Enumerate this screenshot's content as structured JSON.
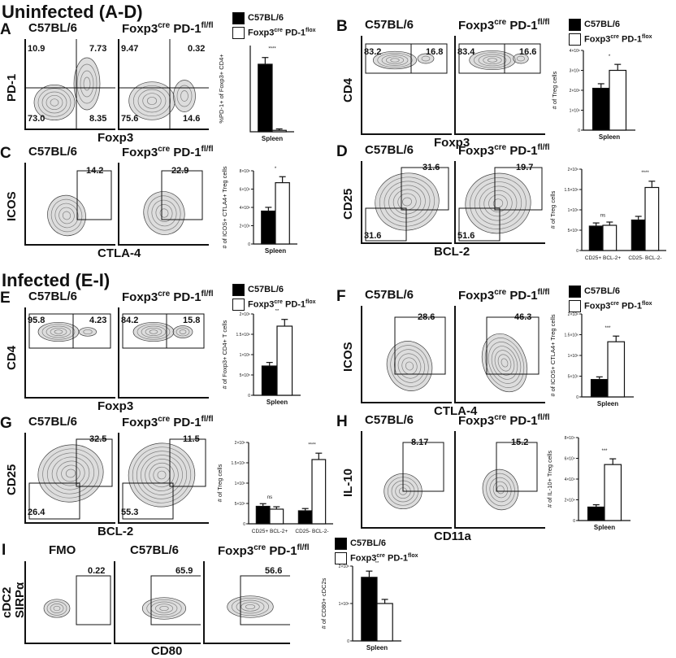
{
  "sections": {
    "uninfected": "Uninfected (A-D)",
    "infected": "Infected (E-I)"
  },
  "strains": {
    "wt": "C57BL/6",
    "ko_main": "Foxp3",
    "ko_sup1": "cre",
    "ko_mid": " PD-1",
    "ko_sup2_fl": "fl/fl",
    "ko_sup2_flox": "flox",
    "fmo": "FMO"
  },
  "colors": {
    "wt_bar": "#000000",
    "ko_bar": "#ffffff",
    "axis": "#111111"
  },
  "panels": {
    "A": {
      "letter": "A",
      "xaxis": "Foxp3",
      "yaxis": "PD-1",
      "wt": {
        "ul": "10.9",
        "ur": "7.73",
        "ll": "73.0",
        "lr": "8.35"
      },
      "ko": {
        "ul": "9.47",
        "ur": "0.32",
        "ll": "75.6",
        "lr": "14.6"
      }
    },
    "B": {
      "letter": "B",
      "xaxis": "Foxp3",
      "yaxis": "CD4",
      "wt": {
        "left": "83.2",
        "right": "16.8"
      },
      "ko": {
        "left": "83.4",
        "right": "16.6"
      }
    },
    "C": {
      "letter": "C",
      "xaxis": "CTLA-4",
      "yaxis": "ICOS",
      "wt": {
        "gate": "14.2"
      },
      "ko": {
        "gate": "22.9"
      }
    },
    "D": {
      "letter": "D",
      "xaxis": "BCL-2",
      "yaxis": "CD25",
      "wt": {
        "top": "31.6",
        "bottom": "31.6"
      },
      "ko": {
        "top": "19.7",
        "bottom": "51.6"
      }
    },
    "E": {
      "letter": "E",
      "xaxis": "Foxp3",
      "yaxis": "CD4",
      "wt": {
        "left": "95.8",
        "right": "4.23"
      },
      "ko": {
        "left": "84.2",
        "right": "15.8"
      }
    },
    "F": {
      "letter": "F",
      "xaxis": "CTLA-4",
      "yaxis": "ICOS",
      "wt": {
        "gate": "28.6"
      },
      "ko": {
        "gate": "46.3"
      }
    },
    "G": {
      "letter": "G",
      "xaxis": "BCL-2",
      "yaxis": "CD25",
      "wt": {
        "top": "32.5",
        "bottom": "26.4"
      },
      "ko": {
        "top": "11.5",
        "bottom": "55.3"
      }
    },
    "H": {
      "letter": "H",
      "xaxis": "CD11a",
      "yaxis": "IL-10",
      "wt": {
        "gate": "8.17"
      },
      "ko": {
        "gate": "15.2"
      }
    },
    "I": {
      "letter": "I",
      "xaxis": "CD80",
      "yaxis_top": "cDC2",
      "yaxis": "SIRPα",
      "fmo": {
        "gate": "0.22"
      },
      "wt": {
        "gate": "65.9"
      },
      "ko": {
        "gate": "56.6"
      }
    }
  },
  "chart_data": [
    {
      "id": "A",
      "type": "bar",
      "ylabel": "%PD-1+ of Foxp3+ CD4+",
      "ylabel_main": "%PD-1",
      "ylabel_tail": " of Foxp3",
      "ylabel_end": " CD4",
      "xlabel": "Spleen",
      "categories": [
        "Spleen"
      ],
      "ylim": [
        0,
        60
      ],
      "yticks": [],
      "sig": [
        "****"
      ],
      "series": [
        {
          "name": "C57BL/6",
          "values": [
            47
          ]
        },
        {
          "name": "Foxp3cre PD-1flox",
          "values": [
            1
          ]
        }
      ]
    },
    {
      "id": "B",
      "type": "bar",
      "ylabel": "# of Treg cells",
      "xlabel": "Spleen",
      "categories": [
        "Spleen"
      ],
      "ylim": [
        0,
        4000000
      ],
      "yticks": [
        "0",
        "1×10⁶",
        "2×10⁶",
        "3×10⁶",
        "4×10⁶"
      ],
      "sig": [
        "*"
      ],
      "series": [
        {
          "name": "C57BL/6",
          "values": [
            2100000
          ]
        },
        {
          "name": "Foxp3cre PD-1flox",
          "values": [
            3000000
          ]
        }
      ]
    },
    {
      "id": "C",
      "type": "bar",
      "ylabel": "# of ICOS+ CTLA4+ Treg cells",
      "ylabel_l1": "# of ICOS",
      "ylabel_l1b": " CTLA4",
      "ylabel_l2": "Treg cells",
      "xlabel": "Spleen",
      "categories": [
        "Spleen"
      ],
      "ylim": [
        0,
        8000000
      ],
      "yticks": [
        "0",
        "2×10⁶",
        "4×10⁶",
        "6×10⁶",
        "8×10⁶"
      ],
      "sig": [
        "*"
      ],
      "series": [
        {
          "name": "C57BL/6",
          "values": [
            3600000
          ]
        },
        {
          "name": "Foxp3cre PD-1flox",
          "values": [
            6700000
          ]
        }
      ]
    },
    {
      "id": "D",
      "type": "bar",
      "ylabel": "# of Treg cells",
      "xlabel": "",
      "categories": [
        "CD25+ BCL-2+",
        "CD25- BCL-2-"
      ],
      "ylim": [
        0,
        2000000
      ],
      "yticks": [
        "0",
        "5×10⁵",
        "1×10⁶",
        "1.5×10⁶",
        "2×10⁶"
      ],
      "sig": [
        "ns",
        "****"
      ],
      "series": [
        {
          "name": "C57BL/6",
          "values": [
            600000,
            750000
          ]
        },
        {
          "name": "Foxp3cre PD-1flox",
          "values": [
            620000,
            1550000
          ]
        }
      ]
    },
    {
      "id": "E",
      "type": "bar",
      "ylabel": "# of Foxp3+ CD4+ T cells",
      "ylabel_a": "# of Foxp3",
      "ylabel_b": " CD4",
      "ylabel_c": " T cells",
      "xlabel": "Spleen",
      "categories": [
        "Spleen"
      ],
      "ylim": [
        0,
        2000000
      ],
      "yticks": [
        "0",
        "5×10⁵",
        "1×10⁶",
        "1.5×10⁶",
        "2×10⁶"
      ],
      "sig": [
        "**"
      ],
      "series": [
        {
          "name": "C57BL/6",
          "values": [
            720000
          ]
        },
        {
          "name": "Foxp3cre PD-1flox",
          "values": [
            1700000
          ]
        }
      ]
    },
    {
      "id": "F",
      "type": "bar",
      "ylabel": "# of ICOS+ CTLA4+ Treg cells",
      "ylabel_l1": "# of ICOS",
      "ylabel_l1b": " CTLA4",
      "ylabel_l2": "Treg cells",
      "xlabel": "Spleen",
      "categories": [
        "Spleen"
      ],
      "ylim": [
        0,
        2000000
      ],
      "yticks": [
        "0",
        "5×10⁵",
        "1×10⁶",
        "1.5×10⁶",
        "2×10⁶"
      ],
      "sig": [
        "***"
      ],
      "series": [
        {
          "name": "C57BL/6",
          "values": [
            420000
          ]
        },
        {
          "name": "Foxp3cre PD-1flox",
          "values": [
            1330000
          ]
        }
      ]
    },
    {
      "id": "G",
      "type": "bar",
      "ylabel": "# of Treg cells",
      "xlabel": "",
      "categories": [
        "CD25+ BCL-2+",
        "CD25- BCL-2-"
      ],
      "ylim": [
        0,
        2000000
      ],
      "yticks": [
        "0",
        "5×10⁵",
        "1×10⁶",
        "1.5×10⁶",
        "2×10⁶"
      ],
      "sig": [
        "ns",
        "****"
      ],
      "series": [
        {
          "name": "C57BL/6",
          "values": [
            430000,
            320000
          ]
        },
        {
          "name": "Foxp3cre PD-1flox",
          "values": [
            360000,
            1580000
          ]
        }
      ]
    },
    {
      "id": "H",
      "type": "bar",
      "ylabel": "# of IL-10+ Treg cells",
      "ylabel_a": "# of IL-10",
      "ylabel_b": " Treg cells",
      "xlabel": "Spleen",
      "categories": [
        "Spleen"
      ],
      "ylim": [
        0,
        80000
      ],
      "yticks": [
        "0",
        "2×10⁴",
        "4×10⁴",
        "6×10⁴",
        "8×10⁴"
      ],
      "sig": [
        "***"
      ],
      "series": [
        {
          "name": "C57BL/6",
          "values": [
            13000
          ]
        },
        {
          "name": "Foxp3cre PD-1flox",
          "values": [
            54000
          ]
        }
      ]
    },
    {
      "id": "I",
      "type": "bar",
      "ylabel": "# of CD80+ cDC2s",
      "ylabel_a": "# of CD80",
      "ylabel_b": " cDC2s",
      "xlabel": "Spleen",
      "categories": [
        "Spleen"
      ],
      "ylim": [
        0,
        2000000
      ],
      "yticks": [
        "0",
        "1×10⁶",
        "2×10⁶"
      ],
      "sig": [
        "**"
      ],
      "series": [
        {
          "name": "C57BL/6",
          "values": [
            1700000
          ]
        },
        {
          "name": "Foxp3cre PD-1flox",
          "values": [
            1000000
          ]
        }
      ]
    }
  ]
}
